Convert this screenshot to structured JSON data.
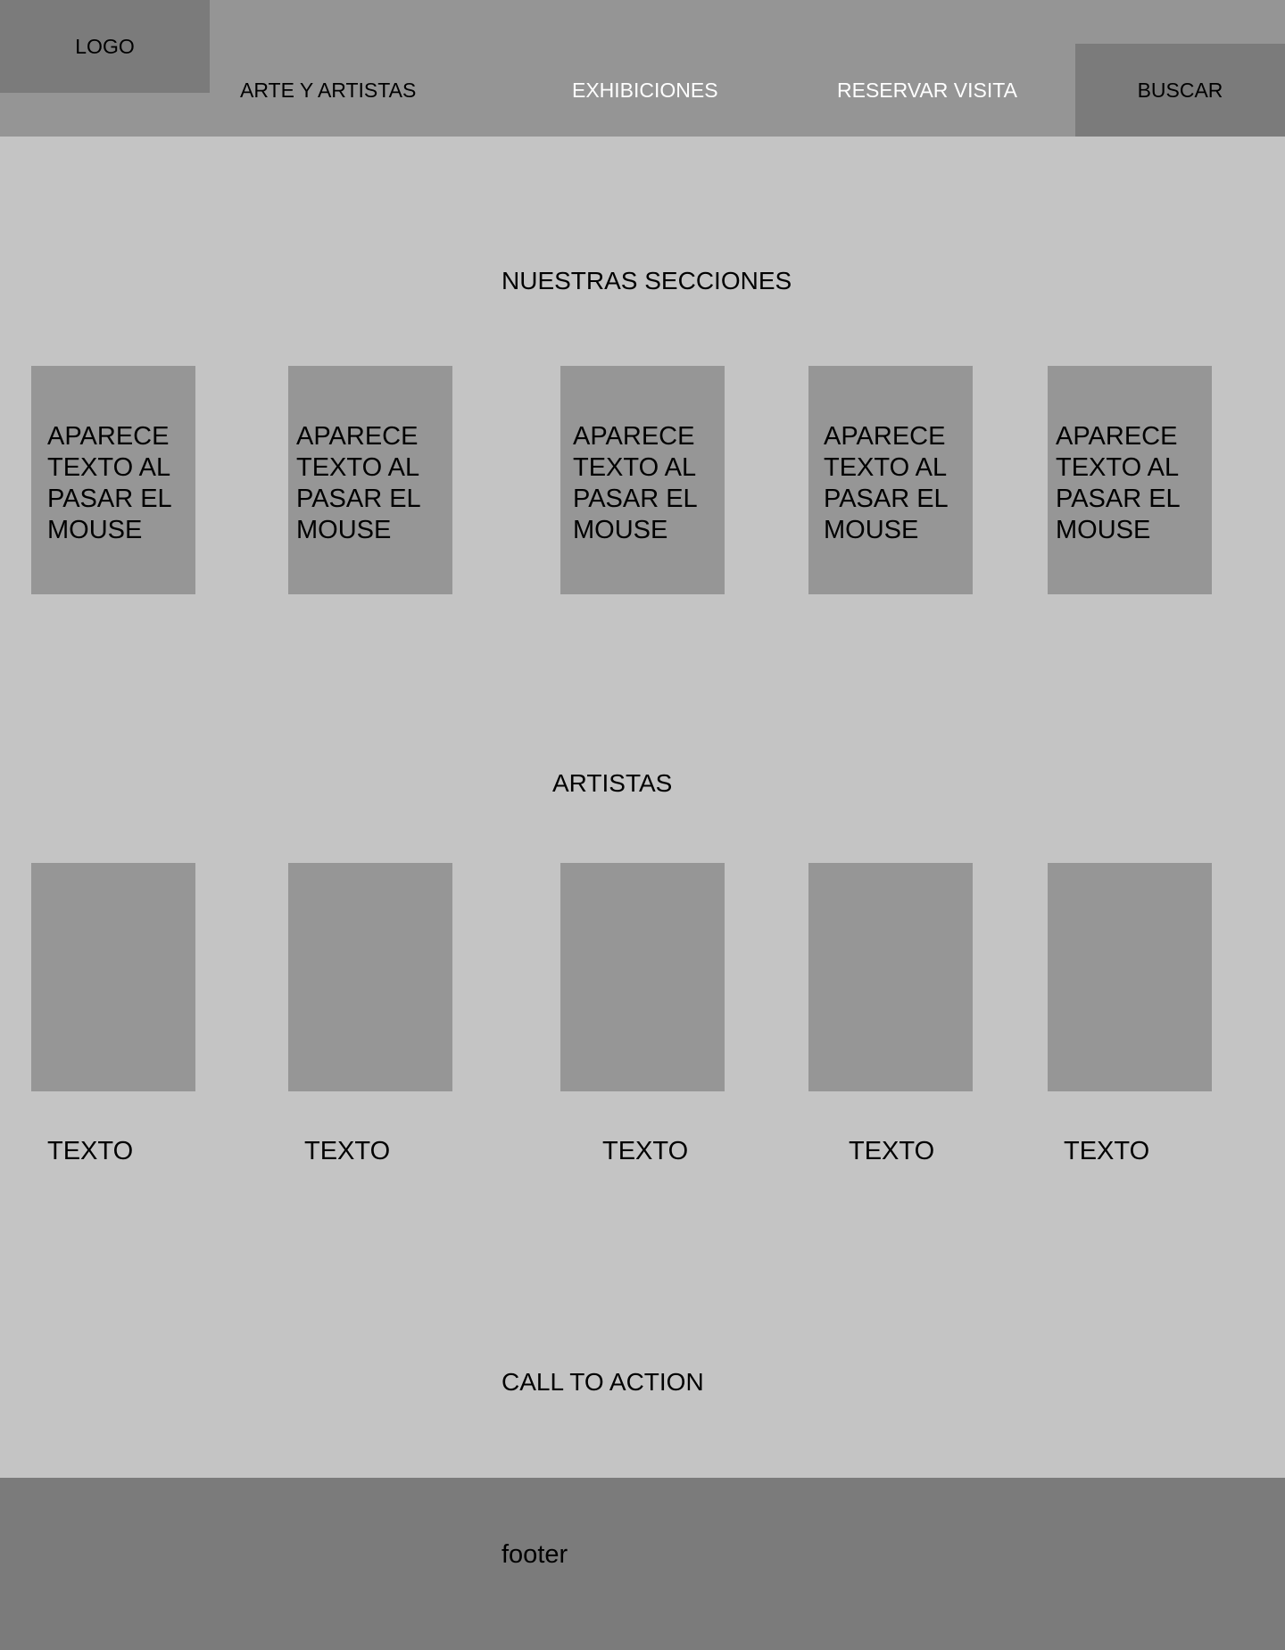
{
  "header": {
    "logo": "LOGO",
    "nav": [
      {
        "label": "ARTE Y ARTISTAS",
        "color": "#000000"
      },
      {
        "label": "EXHIBICIONES",
        "color": "#ffffff"
      },
      {
        "label": "RESERVAR VISITA",
        "color": "#ffffff"
      }
    ],
    "search_label": "BUSCAR"
  },
  "sections": {
    "title": "NUESTRAS SECCIONES",
    "cards": [
      {
        "text": "APARECE TEXTO AL PASAR EL MOUSE"
      },
      {
        "text": "APARECE TEXTO AL PASAR EL MOUSE"
      },
      {
        "text": "APARECE TEXTO AL PASAR EL MOUSE"
      },
      {
        "text": "APARECE TEXTO AL PASAR EL MOUSE"
      },
      {
        "text": "APARECE TEXTO AL PASAR EL MOUSE"
      }
    ]
  },
  "artists": {
    "title": "ARTISTAS",
    "items": [
      {
        "label": "TEXTO"
      },
      {
        "label": "TEXTO"
      },
      {
        "label": "TEXTO"
      },
      {
        "label": "TEXTO"
      },
      {
        "label": "TEXTO"
      }
    ]
  },
  "cta": {
    "label": "CALL TO ACTION"
  },
  "footer": {
    "text": "footer"
  },
  "colors": {
    "page_background": "#c4c4c4",
    "header_background": "#959595",
    "dark_block": "#7b7b7b",
    "card": "#969696"
  }
}
